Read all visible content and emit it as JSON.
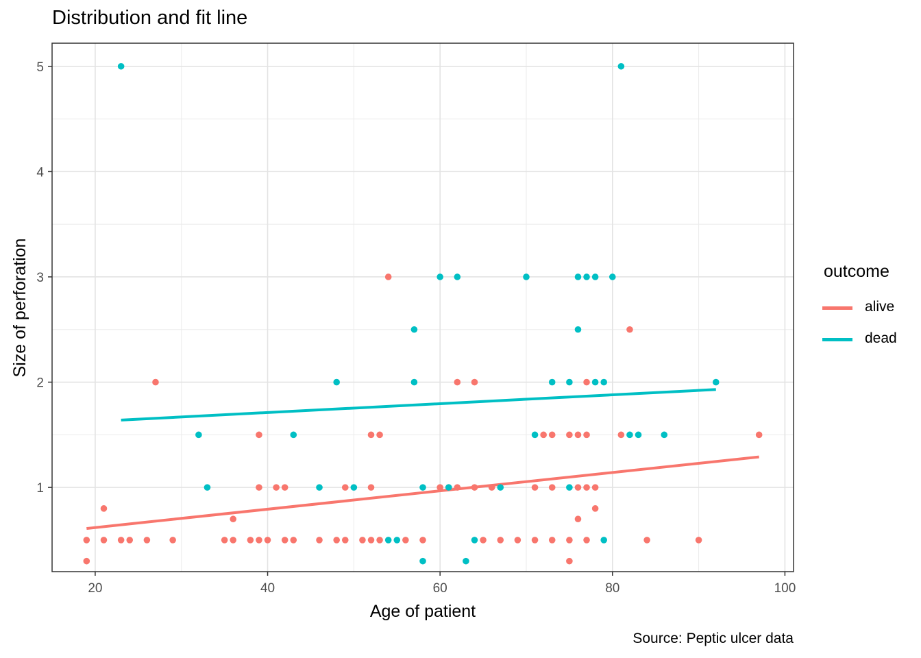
{
  "chart_data": {
    "type": "scatter",
    "title": "Distribution and fit line",
    "caption": "Source: Peptic ulcer data",
    "xlabel": "Age of patient",
    "ylabel": "Size of perforation",
    "xlim": [
      15,
      101
    ],
    "ylim": [
      0.2,
      5.22
    ],
    "x_ticks": [
      20,
      40,
      60,
      80,
      100
    ],
    "y_ticks": [
      1,
      2,
      3,
      4,
      5
    ],
    "x_minor": [
      30,
      50,
      70,
      90
    ],
    "y_minor": [
      1.5,
      2.5,
      3.5,
      4.5
    ],
    "grid": true,
    "legend": {
      "title": "outcome",
      "position": "right"
    },
    "series": [
      {
        "name": "alive",
        "color": "#F8766D",
        "fit": {
          "x": [
            19,
            97
          ],
          "y": [
            0.61,
            1.29
          ]
        },
        "points": [
          [
            19,
            0.5
          ],
          [
            19,
            0.3
          ],
          [
            21,
            0.8
          ],
          [
            21,
            0.5
          ],
          [
            23,
            0.5
          ],
          [
            24,
            0.5
          ],
          [
            26,
            0.5
          ],
          [
            27,
            2
          ],
          [
            29,
            0.5
          ],
          [
            35,
            0.5
          ],
          [
            36,
            0.5
          ],
          [
            36,
            0.7
          ],
          [
            38,
            0.5
          ],
          [
            39,
            0.5
          ],
          [
            39,
            1.5
          ],
          [
            39,
            1
          ],
          [
            40,
            0.5
          ],
          [
            41,
            1
          ],
          [
            42,
            1
          ],
          [
            42,
            0.5
          ],
          [
            43,
            0.5
          ],
          [
            46,
            0.5
          ],
          [
            48,
            0.5
          ],
          [
            49,
            0.5
          ],
          [
            49,
            1
          ],
          [
            51,
            0.5
          ],
          [
            52,
            0.5
          ],
          [
            52,
            1
          ],
          [
            52,
            1.5
          ],
          [
            53,
            1.5
          ],
          [
            53,
            0.5
          ],
          [
            54,
            3
          ],
          [
            56,
            0.5
          ],
          [
            58,
            0.5
          ],
          [
            60,
            1
          ],
          [
            61,
            1
          ],
          [
            62,
            2
          ],
          [
            62,
            1
          ],
          [
            64,
            2
          ],
          [
            64,
            1
          ],
          [
            65,
            0.5
          ],
          [
            66,
            1
          ],
          [
            67,
            0.5
          ],
          [
            69,
            0.5
          ],
          [
            71,
            1
          ],
          [
            71,
            0.5
          ],
          [
            72,
            1.5
          ],
          [
            73,
            1.5
          ],
          [
            73,
            1
          ],
          [
            73,
            0.5
          ],
          [
            75,
            1.5
          ],
          [
            75,
            0.5
          ],
          [
            75,
            0.3
          ],
          [
            76,
            1.5
          ],
          [
            76,
            1
          ],
          [
            76,
            0.7
          ],
          [
            77,
            2
          ],
          [
            77,
            1.5
          ],
          [
            77,
            1
          ],
          [
            77,
            0.5
          ],
          [
            78,
            1
          ],
          [
            78,
            0.8
          ],
          [
            81,
            1.5
          ],
          [
            82,
            2.5
          ],
          [
            84,
            0.5
          ],
          [
            90,
            0.5
          ],
          [
            97,
            1.5
          ]
        ]
      },
      {
        "name": "dead",
        "color": "#00BFC4",
        "fit": {
          "x": [
            23,
            92
          ],
          "y": [
            1.64,
            1.93
          ]
        },
        "points": [
          [
            23,
            5
          ],
          [
            32,
            1.5
          ],
          [
            33,
            1
          ],
          [
            43,
            1.5
          ],
          [
            46,
            1
          ],
          [
            48,
            2
          ],
          [
            50,
            1
          ],
          [
            54,
            0.5
          ],
          [
            55,
            0.5
          ],
          [
            57,
            2.5
          ],
          [
            57,
            2
          ],
          [
            58,
            1
          ],
          [
            58,
            0.3
          ],
          [
            60,
            3
          ],
          [
            61,
            1
          ],
          [
            62,
            3
          ],
          [
            63,
            0.3
          ],
          [
            64,
            0.5
          ],
          [
            67,
            1
          ],
          [
            70,
            3
          ],
          [
            71,
            1.5
          ],
          [
            73,
            2
          ],
          [
            75,
            2
          ],
          [
            75,
            1
          ],
          [
            76,
            3
          ],
          [
            76,
            2.5
          ],
          [
            77,
            3
          ],
          [
            78,
            3
          ],
          [
            78,
            2
          ],
          [
            79,
            2
          ],
          [
            79,
            0.5
          ],
          [
            80,
            3
          ],
          [
            81,
            5
          ],
          [
            82,
            1.5
          ],
          [
            83,
            1.5
          ],
          [
            86,
            1.5
          ],
          [
            92,
            2
          ]
        ]
      }
    ]
  }
}
